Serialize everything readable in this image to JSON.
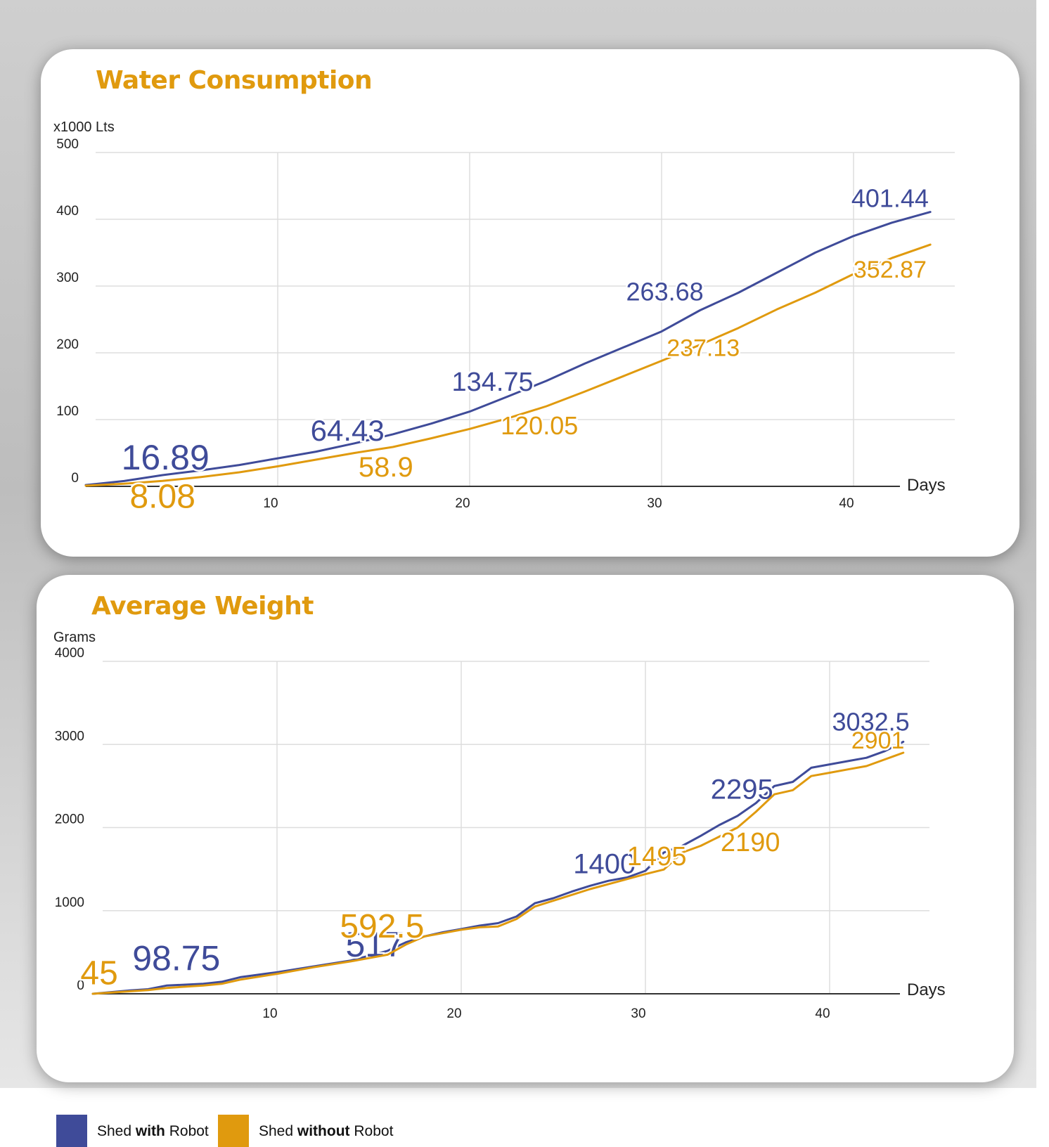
{
  "colors": {
    "with_robot": "#3f4b99",
    "without_robot": "#e09a0e",
    "grid": "#dddddd",
    "axis": "#333333",
    "title": "#e09a0e"
  },
  "legend": [
    {
      "prefix": "Shed ",
      "bold": "with",
      "suffix": " Robot",
      "color": "#3f4b99"
    },
    {
      "prefix": "Shed ",
      "bold": "without",
      "suffix": " Robot",
      "color": "#e09a0e"
    }
  ],
  "chart_data": [
    {
      "type": "line",
      "title": "Water Consumption",
      "ylabel": "x1000 Lts",
      "xlabel": "Days",
      "ylim": [
        0,
        500
      ],
      "xlim": [
        0,
        44
      ],
      "yticks": [
        0,
        100,
        200,
        300,
        400,
        500
      ],
      "xticks": [
        10,
        20,
        30,
        40
      ],
      "grid": true,
      "series": [
        {
          "name": "Shed with Robot",
          "color": "#3f4b99",
          "x": [
            0,
            2,
            4,
            6,
            8,
            10,
            12,
            14,
            16,
            18,
            20,
            22,
            24,
            26,
            28,
            30,
            32,
            34,
            36,
            38,
            40,
            42,
            44
          ],
          "y": [
            2,
            8,
            16.89,
            24,
            32,
            42,
            52,
            64.43,
            78,
            94,
            112,
            134.75,
            158,
            184,
            208,
            232,
            263.68,
            290,
            320,
            350,
            375,
            395,
            411
          ],
          "labels": [
            {
              "text": "16.89",
              "x": 4,
              "y": 16.89
            },
            {
              "text": "64.43",
              "x": 14,
              "y": 64.43
            },
            {
              "text": "134.75",
              "x": 22,
              "y": 134.75
            },
            {
              "text": "263.68",
              "x": 32,
              "y": 263.68
            },
            {
              "text": "401.44",
              "x": 43,
              "y": 401.44
            }
          ]
        },
        {
          "name": "Shed without Robot",
          "color": "#e09a0e",
          "x": [
            0,
            2,
            4,
            6,
            8,
            10,
            12,
            14,
            16,
            18,
            20,
            22,
            24,
            26,
            28,
            30,
            32,
            34,
            36,
            38,
            40,
            42,
            44
          ],
          "y": [
            1,
            4,
            8.08,
            14,
            21,
            30,
            40,
            50,
            58.9,
            72,
            86,
            102,
            120.05,
            142,
            165,
            188,
            212,
            237.13,
            265,
            290,
            318,
            342,
            362
          ],
          "labels": [
            {
              "text": "8.08",
              "x": 4,
              "y": 8.08
            },
            {
              "text": "58.9",
              "x": 16,
              "y": 58.9
            },
            {
              "text": "120.05",
              "x": 24,
              "y": 120.05
            },
            {
              "text": "237.13",
              "x": 34,
              "y": 237.13
            },
            {
              "text": "352.87",
              "x": 43,
              "y": 352.87
            }
          ]
        }
      ]
    },
    {
      "type": "line",
      "title": "Average Weight",
      "ylabel": "Grams",
      "xlabel": "Days",
      "ylim": [
        0,
        4000
      ],
      "xlim": [
        0,
        44
      ],
      "yticks": [
        0,
        1000,
        2000,
        3000,
        4000
      ],
      "xticks": [
        10,
        20,
        30,
        40
      ],
      "grid": true,
      "series": [
        {
          "name": "Shed with Robot",
          "color": "#3f4b99",
          "x": [
            0,
            2,
            3,
            4,
            6,
            7,
            8,
            10,
            12,
            14,
            16,
            17,
            18,
            19,
            20,
            21,
            22,
            23,
            24,
            25,
            26,
            27,
            28,
            29,
            30,
            31,
            32,
            33,
            34,
            35,
            36,
            37,
            38,
            39,
            40,
            41,
            42,
            43,
            44
          ],
          "y": [
            0,
            40,
            55,
            98.75,
            120,
            145,
            200,
            260,
            330,
            400,
            517,
            620,
            690,
            740,
            780,
            820,
            850,
            930,
            1090,
            1150,
            1230,
            1300,
            1360,
            1400,
            1480,
            1700,
            1780,
            1900,
            2030,
            2140,
            2295,
            2500,
            2550,
            2720,
            2760,
            2800,
            2840,
            2920,
            3032.5
          ],
          "labels": [
            {
              "text": "98.75",
              "x": 4,
              "y": 98.75
            },
            {
              "text": "517",
              "x": 16,
              "y": 517
            },
            {
              "text": "1400",
              "x": 29,
              "y": 1400
            },
            {
              "text": "2295",
              "x": 36,
              "y": 2295
            },
            {
              "text": "3032.5",
              "x": 43,
              "y": 3032.5
            }
          ]
        },
        {
          "name": "Shed without Robot",
          "color": "#e09a0e",
          "x": [
            0,
            2,
            3,
            4,
            6,
            7,
            8,
            10,
            12,
            14,
            16,
            17,
            18,
            19,
            20,
            21,
            22,
            23,
            24,
            25,
            26,
            27,
            28,
            29,
            30,
            31,
            32,
            33,
            34,
            35,
            36,
            37,
            38,
            39,
            40,
            41,
            42,
            43,
            44
          ],
          "y": [
            0,
            30,
            45,
            70,
            100,
            120,
            170,
            240,
            320,
            390,
            470,
            592.5,
            690,
            730,
            770,
            800,
            810,
            900,
            1050,
            1120,
            1190,
            1260,
            1320,
            1380,
            1440,
            1495,
            1700,
            1780,
            1890,
            2000,
            2190,
            2400,
            2450,
            2620,
            2660,
            2700,
            2740,
            2820,
            2901
          ],
          "labels": [
            {
              "text": "45",
              "x": 0.5,
              "y": 45
            },
            {
              "text": "592.5",
              "x": 17,
              "y": 592.5
            },
            {
              "text": "1495",
              "x": 31,
              "y": 1495
            },
            {
              "text": "2190",
              "x": 36,
              "y": 2190
            },
            {
              "text": "2901",
              "x": 43,
              "y": 2901
            }
          ]
        }
      ]
    }
  ]
}
